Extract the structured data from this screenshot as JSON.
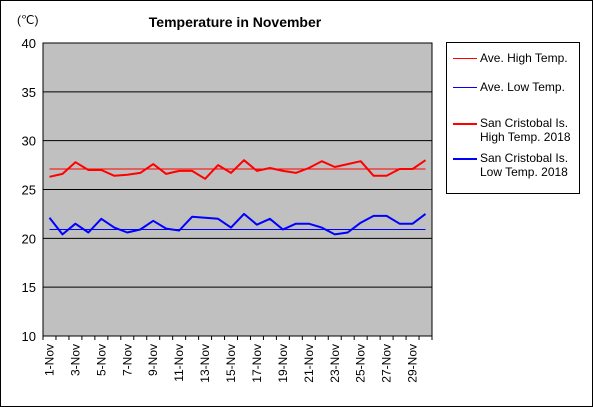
{
  "chart_data": {
    "type": "line",
    "title": "Temperature in November",
    "unit_label": "(℃)",
    "ylim": [
      10,
      40
    ],
    "y_ticks": [
      10,
      15,
      20,
      25,
      30,
      35,
      40
    ],
    "grid": true,
    "categories": [
      "1-Nov",
      "2-Nov",
      "3-Nov",
      "4-Nov",
      "5-Nov",
      "6-Nov",
      "7-Nov",
      "8-Nov",
      "9-Nov",
      "10-Nov",
      "11-Nov",
      "12-Nov",
      "13-Nov",
      "14-Nov",
      "15-Nov",
      "16-Nov",
      "17-Nov",
      "18-Nov",
      "19-Nov",
      "20-Nov",
      "21-Nov",
      "22-Nov",
      "23-Nov",
      "24-Nov",
      "25-Nov",
      "26-Nov",
      "27-Nov",
      "28-Nov",
      "29-Nov",
      "30-Nov"
    ],
    "x_tick_labels": [
      "1-Nov",
      "3-Nov",
      "5-Nov",
      "7-Nov",
      "9-Nov",
      "11-Nov",
      "13-Nov",
      "15-Nov",
      "17-Nov",
      "19-Nov",
      "21-Nov",
      "23-Nov",
      "25-Nov",
      "27-Nov",
      "29-Nov"
    ],
    "legend_position": "right",
    "series": [
      {
        "name": "Ave. High Temp.",
        "color": "#ff0000",
        "width": 1,
        "constant": 27.1
      },
      {
        "name": "Ave. Low Temp.",
        "color": "#0000ff",
        "width": 1,
        "constant": 20.9
      },
      {
        "name": "San Cristobal Is.\nHigh Temp. 2018",
        "color": "#ff0000",
        "width": 2,
        "values": [
          26.3,
          26.6,
          27.8,
          27.0,
          27.0,
          26.4,
          26.5,
          26.7,
          27.6,
          26.6,
          26.9,
          26.9,
          26.1,
          27.5,
          26.7,
          28.0,
          26.9,
          27.2,
          26.9,
          26.7,
          27.2,
          27.9,
          27.3,
          27.6,
          27.9,
          26.4,
          26.4,
          27.1,
          27.1,
          28.0
        ]
      },
      {
        "name": "San Cristobal Is.\nLow Temp. 2018",
        "color": "#0000ff",
        "width": 2,
        "values": [
          22.1,
          20.4,
          21.5,
          20.6,
          22.0,
          21.1,
          20.6,
          20.9,
          21.8,
          21.0,
          20.8,
          22.2,
          22.1,
          22.0,
          21.1,
          22.5,
          21.4,
          22.0,
          20.9,
          21.5,
          21.5,
          21.1,
          20.4,
          20.6,
          21.6,
          22.3,
          22.3,
          21.5,
          21.5,
          22.5
        ]
      }
    ]
  }
}
